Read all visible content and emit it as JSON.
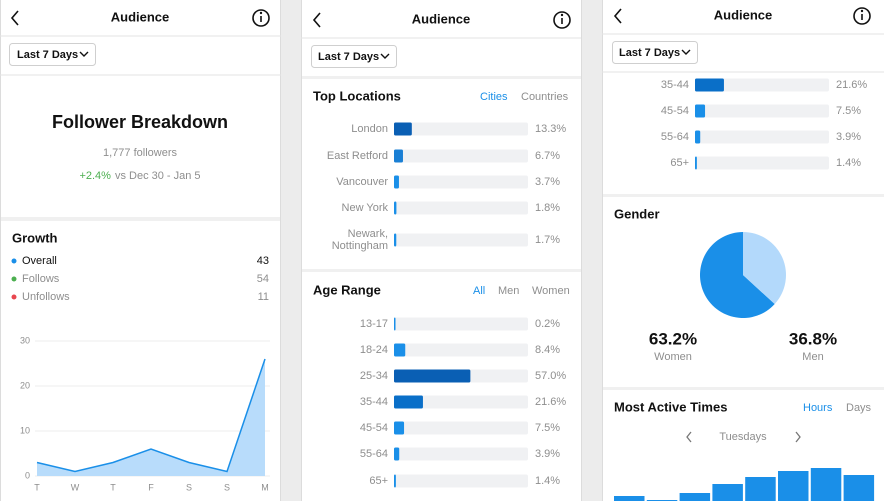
{
  "header": {
    "title": "Audience",
    "period": "Last 7 Days"
  },
  "breakdown": {
    "title": "Follower Breakdown",
    "followers": "1,777 followers",
    "change": "+2.4%",
    "comparison": "vs Dec 30 - Jan 5"
  },
  "growth": {
    "title": "Growth",
    "legend": [
      {
        "name": "Overall",
        "value": 43,
        "color": "#1a8fe8"
      },
      {
        "name": "Follows",
        "value": 54,
        "color": "#4caf50"
      },
      {
        "name": "Unfollows",
        "value": 11,
        "color": "#e8474f"
      }
    ],
    "chart": {
      "type": "area",
      "categories": [
        "T",
        "W",
        "T",
        "F",
        "S",
        "S",
        "M"
      ],
      "values": [
        3,
        1,
        3,
        6,
        3,
        1,
        26
      ],
      "ylim": [
        0,
        30
      ],
      "yticks": [
        0,
        10,
        20,
        30
      ],
      "color": "#1a8fe8",
      "fill": "#b8dcfb",
      "grid": true
    }
  },
  "top_locations": {
    "title": "Top Locations",
    "tabs": [
      "Cities",
      "Countries"
    ],
    "chart": {
      "type": "bar",
      "categories": [
        "London",
        "East Retford",
        "Vancouver",
        "New York",
        "Newark, Nottingham"
      ],
      "values": [
        13.3,
        6.7,
        3.7,
        1.8,
        1.7
      ],
      "value_labels": [
        "13.3%",
        "6.7%",
        "3.7%",
        "1.8%",
        "1.7%"
      ],
      "xlim": [
        0,
        100
      ],
      "colors": [
        "#0a5fb4",
        "#1a7fd4",
        "#1a8fe8",
        "#1a8fe8",
        "#1a8fe8"
      ]
    }
  },
  "age_range": {
    "title": "Age Range",
    "tabs": [
      "All",
      "Men",
      "Women"
    ],
    "chart": {
      "type": "bar",
      "categories": [
        "13-17",
        "18-24",
        "25-34",
        "35-44",
        "45-54",
        "55-64",
        "65+"
      ],
      "values": [
        0.2,
        8.4,
        57.0,
        21.6,
        7.5,
        3.9,
        1.4
      ],
      "value_labels": [
        "0.2%",
        "8.4%",
        "57.0%",
        "21.6%",
        "7.5%",
        "3.9%",
        "1.4%"
      ],
      "xlim": [
        0,
        100
      ],
      "colors": [
        "#1a8fe8",
        "#1a8fe8",
        "#0a5fb4",
        "#0a6fc8",
        "#1a8fe8",
        "#1a8fe8",
        "#1a8fe8"
      ]
    }
  },
  "gender": {
    "title": "Gender",
    "chart": {
      "type": "pie",
      "categories": [
        "Women",
        "Men"
      ],
      "values": [
        63.2,
        36.8
      ],
      "value_labels": [
        "63.2%",
        "36.8%"
      ],
      "colors": [
        "#1a8fe8",
        "#b3d9fb"
      ]
    }
  },
  "active_times": {
    "title": "Most Active Times",
    "tabs": [
      "Hours",
      "Days"
    ],
    "day": "Tuesdays",
    "chart": {
      "type": "bar",
      "values": [
        5,
        1,
        8,
        17,
        24,
        30,
        33,
        26
      ],
      "color": "#1a8fe8"
    }
  }
}
